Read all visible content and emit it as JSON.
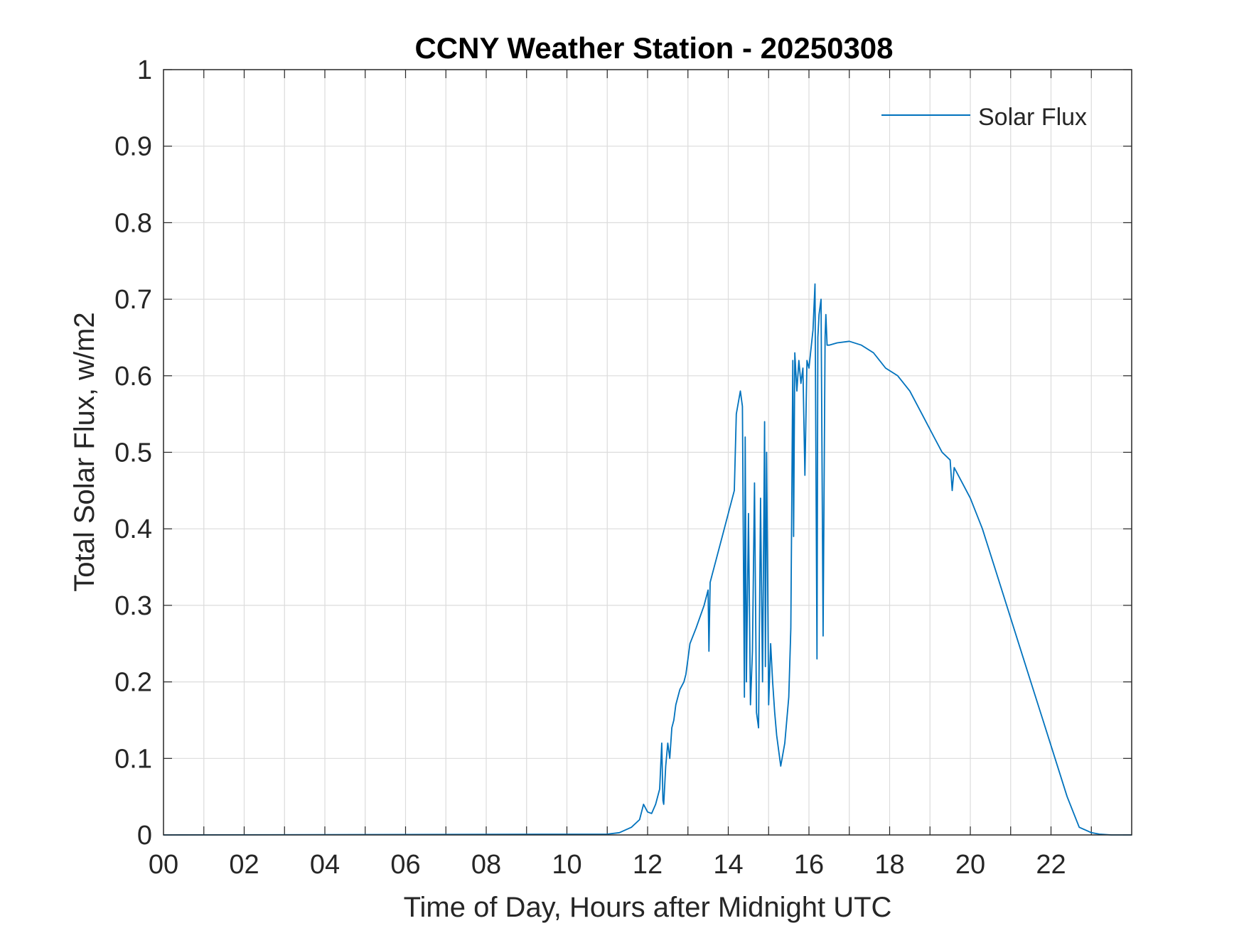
{
  "chart_data": {
    "type": "line",
    "title": "CCNY Weather Station - 20250308",
    "xlabel": "Time of Day, Hours after Midnight UTC",
    "ylabel": "Total Solar Flux, w/m2",
    "xlim": [
      0,
      24
    ],
    "ylim": [
      0,
      1
    ],
    "grid": true,
    "legend_position": "top-right",
    "x_ticks": [
      0,
      2,
      4,
      6,
      8,
      10,
      12,
      14,
      16,
      18,
      20,
      22
    ],
    "x_tick_labels": [
      "00",
      "02",
      "04",
      "06",
      "08",
      "10",
      "12",
      "14",
      "16",
      "18",
      "20",
      "22"
    ],
    "x_minor_grid_step": 1,
    "y_ticks": [
      0,
      0.1,
      0.2,
      0.3,
      0.4,
      0.5,
      0.6,
      0.7,
      0.8,
      0.9,
      1
    ],
    "y_tick_labels": [
      "0",
      "0.1",
      "0.2",
      "0.3",
      "0.4",
      "0.5",
      "0.6",
      "0.7",
      "0.8",
      "0.9",
      "1"
    ],
    "series": [
      {
        "name": "Solar Flux",
        "color": "#0072bd",
        "x": [
          0,
          11.0,
          11.3,
          11.6,
          11.8,
          11.9,
          12.0,
          12.1,
          12.2,
          12.3,
          12.35,
          12.38,
          12.4,
          12.45,
          12.5,
          12.55,
          12.6,
          12.65,
          12.7,
          12.8,
          12.9,
          12.95,
          13.0,
          13.05,
          13.2,
          13.4,
          13.5,
          13.52,
          13.55,
          13.6,
          13.8,
          14.0,
          14.15,
          14.2,
          14.3,
          14.35,
          14.4,
          14.42,
          14.45,
          14.5,
          14.55,
          14.6,
          14.65,
          14.7,
          14.75,
          14.8,
          14.85,
          14.9,
          14.92,
          14.95,
          15.0,
          15.05,
          15.1,
          15.15,
          15.2,
          15.3,
          15.4,
          15.5,
          15.55,
          15.6,
          15.62,
          15.65,
          15.7,
          15.75,
          15.8,
          15.85,
          15.9,
          15.95,
          16.0,
          16.1,
          16.15,
          16.2,
          16.22,
          16.25,
          16.3,
          16.35,
          16.4,
          16.42,
          16.45,
          16.5,
          16.7,
          17.0,
          17.3,
          17.6,
          17.9,
          18.2,
          18.5,
          18.8,
          19.1,
          19.3,
          19.5,
          19.55,
          19.6,
          19.7,
          19.8,
          20.0,
          20.3,
          20.6,
          20.9,
          21.2,
          21.5,
          21.8,
          22.1,
          22.4,
          22.7,
          23.0,
          23.2,
          23.5,
          24
        ],
        "values": [
          0,
          0.001,
          0.003,
          0.01,
          0.02,
          0.04,
          0.03,
          0.028,
          0.04,
          0.06,
          0.12,
          0.045,
          0.04,
          0.09,
          0.12,
          0.1,
          0.14,
          0.15,
          0.17,
          0.19,
          0.2,
          0.21,
          0.23,
          0.25,
          0.27,
          0.3,
          0.32,
          0.24,
          0.33,
          0.34,
          0.38,
          0.42,
          0.45,
          0.55,
          0.58,
          0.56,
          0.18,
          0.52,
          0.2,
          0.42,
          0.17,
          0.24,
          0.46,
          0.16,
          0.14,
          0.44,
          0.2,
          0.54,
          0.22,
          0.5,
          0.17,
          0.25,
          0.2,
          0.16,
          0.13,
          0.09,
          0.12,
          0.18,
          0.27,
          0.62,
          0.39,
          0.63,
          0.58,
          0.62,
          0.59,
          0.61,
          0.47,
          0.62,
          0.61,
          0.66,
          0.72,
          0.23,
          0.65,
          0.68,
          0.7,
          0.26,
          0.65,
          0.68,
          0.64,
          0.64,
          0.643,
          0.645,
          0.64,
          0.63,
          0.61,
          0.6,
          0.58,
          0.55,
          0.52,
          0.5,
          0.49,
          0.45,
          0.48,
          0.47,
          0.46,
          0.44,
          0.4,
          0.35,
          0.3,
          0.25,
          0.2,
          0.15,
          0.1,
          0.05,
          0.01,
          0.003,
          0.001,
          0,
          0
        ]
      }
    ]
  }
}
